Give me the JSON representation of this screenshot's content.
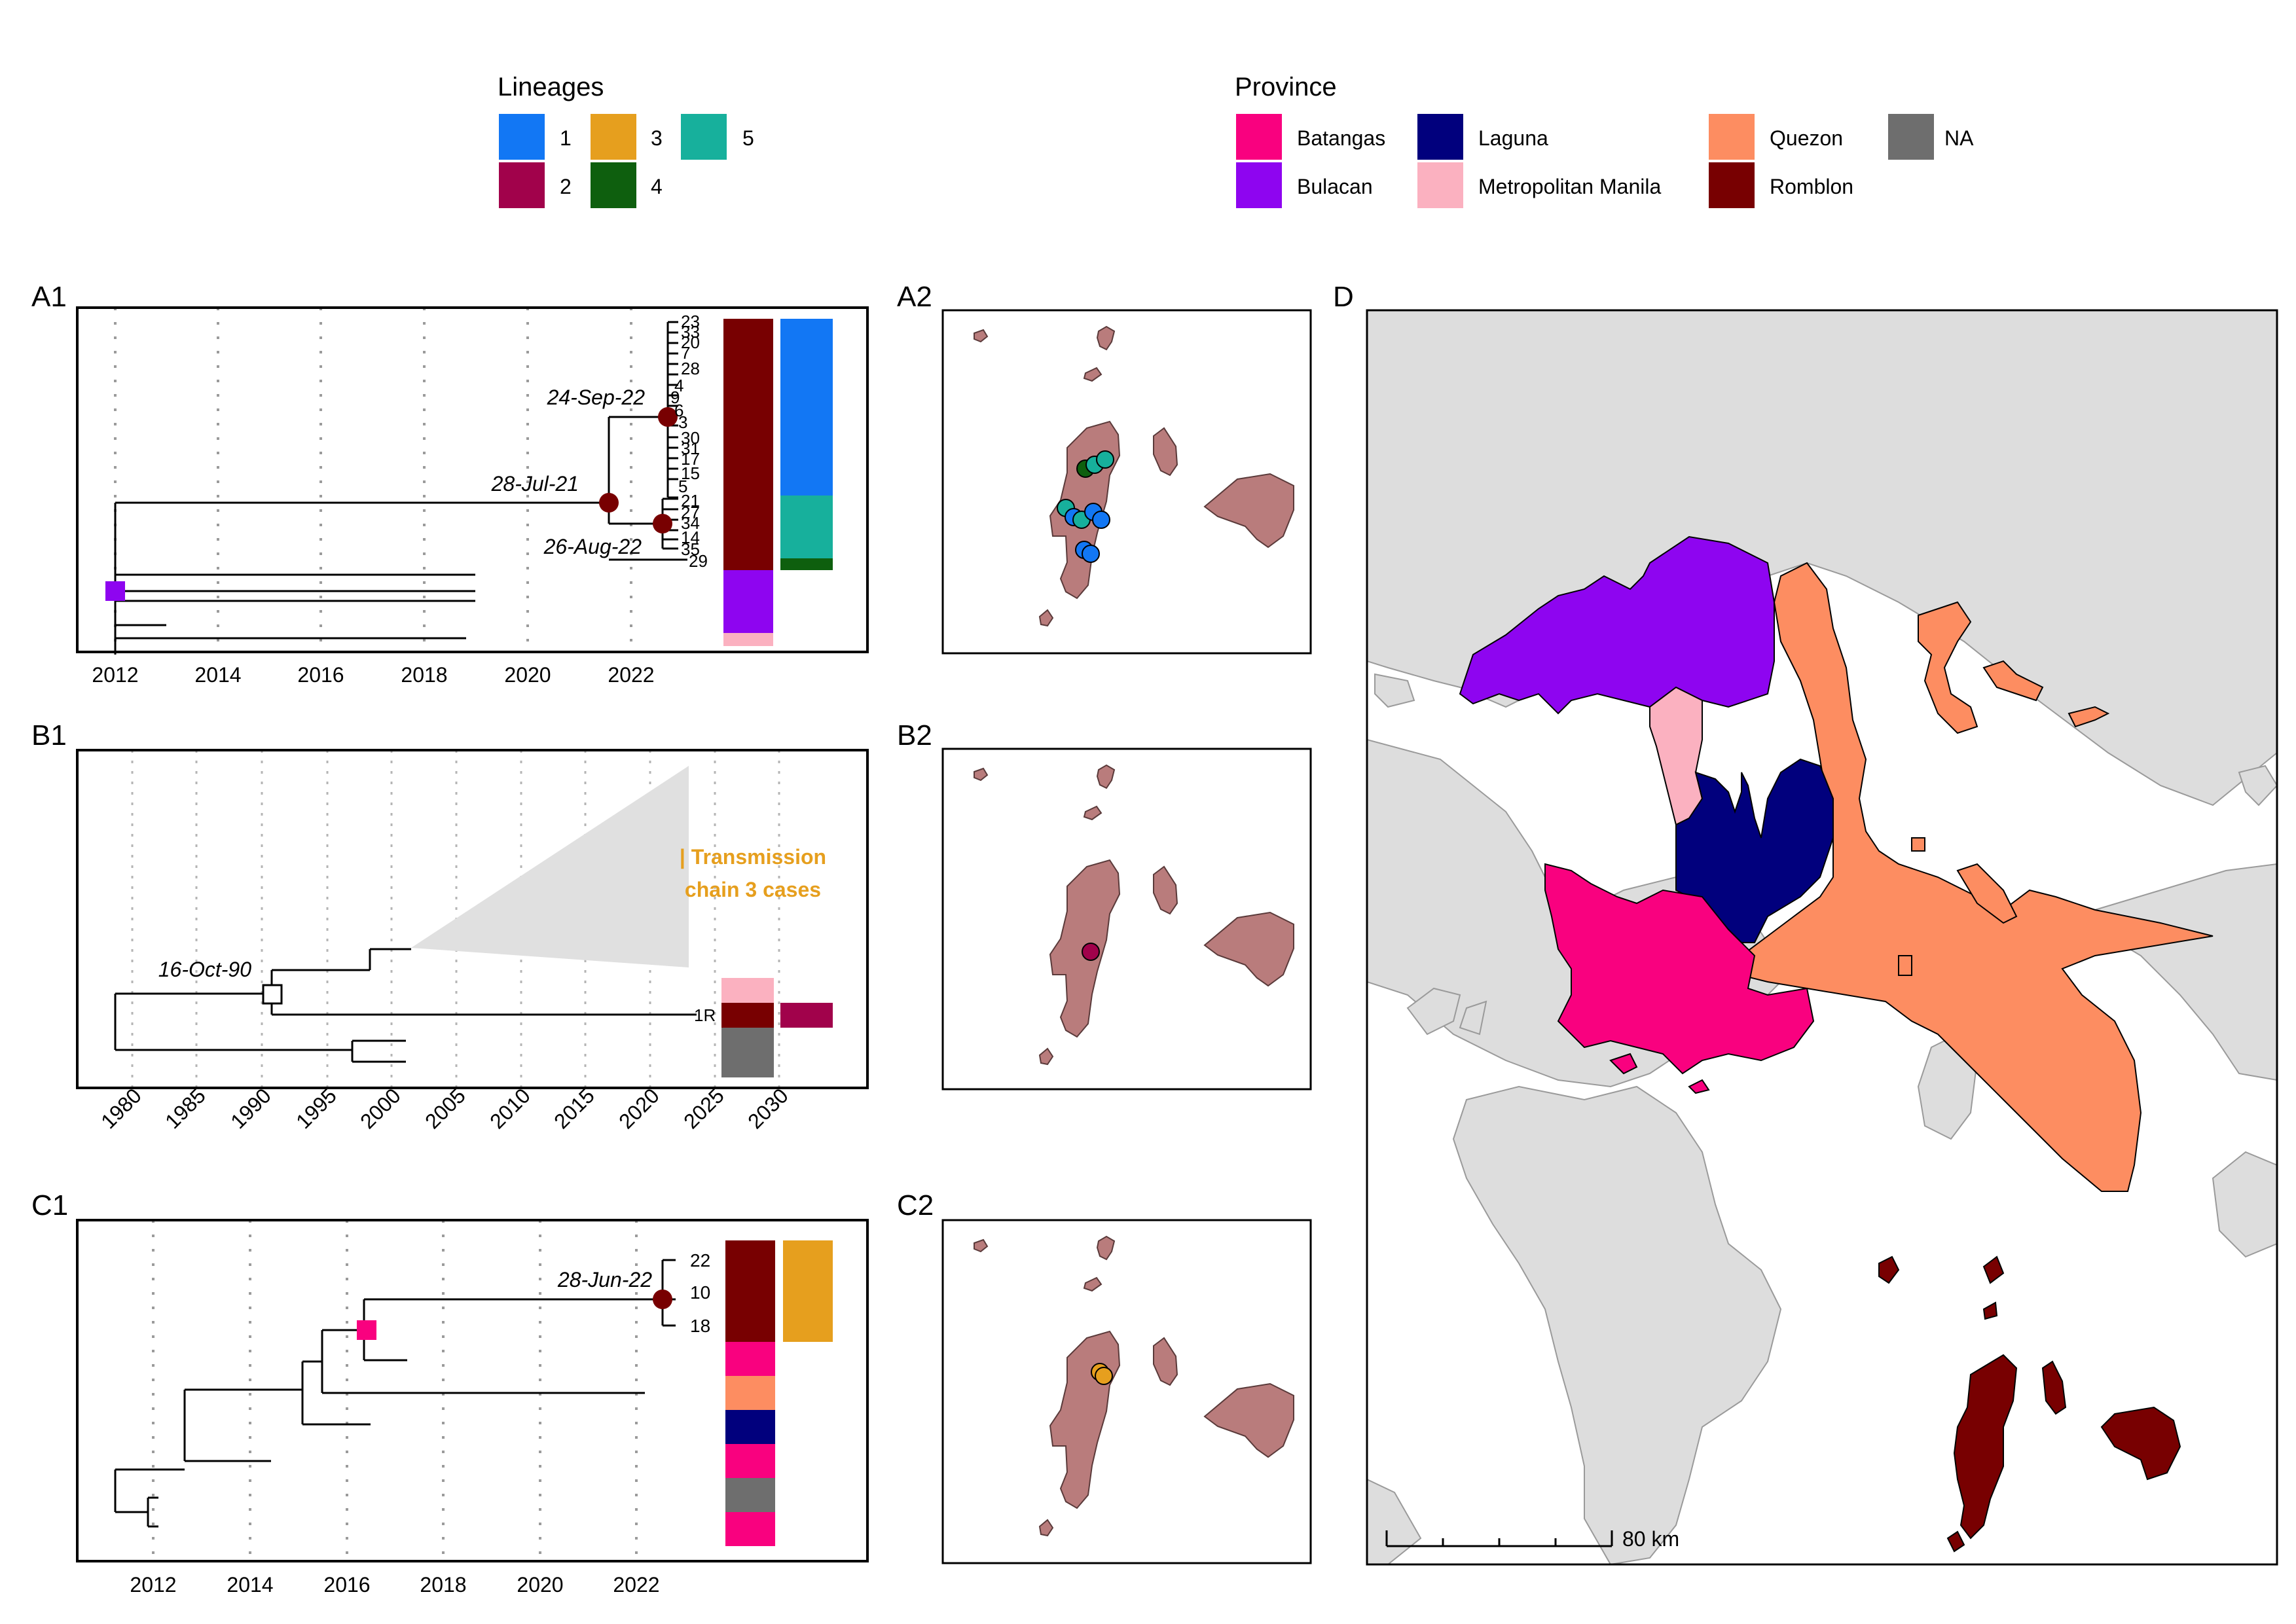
{
  "legend_lineages": {
    "title": "Lineages",
    "items": [
      {
        "label": "1",
        "color": "#1277f4"
      },
      {
        "label": "2",
        "color": "#a1024b"
      },
      {
        "label": "3",
        "color": "#e69f1e"
      },
      {
        "label": "4",
        "color": "#0e5f0e"
      },
      {
        "label": "5",
        "color": "#17b09c"
      }
    ]
  },
  "legend_province": {
    "title": "Province",
    "items": [
      {
        "label": "Batangas",
        "color": "#f9017f"
      },
      {
        "label": "Bulacan",
        "color": "#8e05f0"
      },
      {
        "label": "Laguna",
        "color": "#01007d"
      },
      {
        "label": "Metropolitan Manila",
        "color": "#fbb1c0"
      },
      {
        "label": "Quezon",
        "color": "#fd8d61"
      },
      {
        "label": "Romblon",
        "color": "#780001"
      },
      {
        "label": "NA",
        "color": "#6e6e6e"
      }
    ]
  },
  "panels": {
    "A1": {
      "label": "A1",
      "ticks": [
        "2012",
        "2014",
        "2016",
        "2018",
        "2020",
        "2022"
      ],
      "nodes": [
        {
          "label": "24-Sep-22",
          "date": 2022.73
        },
        {
          "label": "28-Jul-21",
          "date": 2021.57
        },
        {
          "label": "26-Aug-22",
          "date": 2022.65
        }
      ],
      "tips": [
        "23",
        "33",
        "20",
        "7",
        "28",
        "4",
        "9",
        "6",
        "3",
        "30",
        "31",
        "17",
        "15",
        "5",
        "21",
        "27",
        "34",
        "14",
        "35",
        "29"
      ]
    },
    "A2": {
      "label": "A2"
    },
    "B1": {
      "label": "B1",
      "ticks": [
        "1980",
        "1985",
        "1990",
        "1995",
        "2000",
        "2005",
        "2010",
        "2015",
        "2020",
        "2025",
        "2030"
      ],
      "nodes": [
        {
          "label": "16-Oct-90",
          "date": 1990.79
        }
      ],
      "tips": [
        "1R"
      ],
      "collapsed_clade_text": [
        "| Transmission",
        "chain 3 cases"
      ]
    },
    "B2": {
      "label": "B2"
    },
    "C1": {
      "label": "C1",
      "ticks": [
        "2012",
        "2014",
        "2016",
        "2018",
        "2020",
        "2022"
      ],
      "nodes": [
        {
          "label": "28-Jun-22",
          "date": 2022.49
        }
      ],
      "tips": [
        "22",
        "10",
        "18"
      ]
    },
    "C2": {
      "label": "C2"
    },
    "D": {
      "label": "D",
      "scale_bar": "80 km"
    }
  }
}
